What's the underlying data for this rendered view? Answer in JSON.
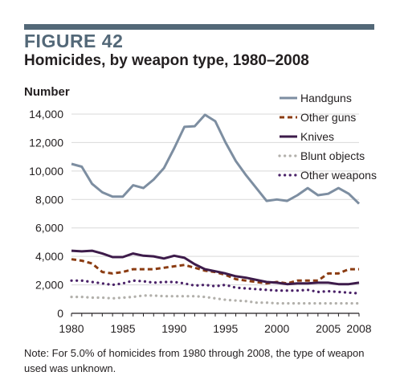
{
  "figure_label": "FIGURE 42",
  "title": "Homicides, by weapon type, 1980–2008",
  "note": "Note: For 5.0% of homicides from 1980 through 2008, the type of weapon used was unknown.",
  "colors": {
    "accent": "#536878",
    "handguns": "#7d8ea1",
    "other_guns": "#8b3c12",
    "knives": "#3d1b4a",
    "blunt_objects": "#b2b0ab",
    "other_weapons": "#4a2268"
  },
  "chart_data": {
    "type": "line",
    "title": "Homicides, by weapon type, 1980–2008",
    "ylabel": "Number",
    "xlabel": "",
    "ylim": [
      0,
      14000
    ],
    "xlim": [
      1980,
      2008
    ],
    "yticks": [
      0,
      2000,
      4000,
      6000,
      8000,
      10000,
      12000,
      14000
    ],
    "ytick_labels": [
      "0",
      "2,000",
      "4,000",
      "6,000",
      "8,000",
      "10,000",
      "12,000",
      "14,000"
    ],
    "xticks": [
      1980,
      1985,
      1990,
      1995,
      2000,
      2005,
      2008
    ],
    "xtick_labels": [
      "1980",
      "1985",
      "1990",
      "1995",
      "2000",
      "2005",
      "2008"
    ],
    "grid": true,
    "legend_position": "top-right",
    "x": [
      1980,
      1981,
      1982,
      1983,
      1984,
      1985,
      1986,
      1987,
      1988,
      1989,
      1990,
      1991,
      1992,
      1993,
      1994,
      1995,
      1996,
      1997,
      1998,
      1999,
      2000,
      2001,
      2002,
      2003,
      2004,
      2005,
      2006,
      2007,
      2008
    ],
    "series": [
      {
        "name": "Handguns",
        "style": "solid",
        "color": "#7d8ea1",
        "values": [
          10500,
          10300,
          9100,
          8500,
          8200,
          8200,
          9000,
          8800,
          9400,
          10200,
          11600,
          13100,
          13150,
          13950,
          13500,
          12000,
          10700,
          9700,
          8800,
          7900,
          8000,
          7900,
          8300,
          8800,
          8300,
          8400,
          8800,
          8400,
          7700
        ]
      },
      {
        "name": "Other guns",
        "style": "dashed",
        "color": "#8b3c12",
        "values": [
          3800,
          3700,
          3500,
          2900,
          2800,
          2900,
          3100,
          3100,
          3100,
          3200,
          3300,
          3400,
          3200,
          3000,
          2900,
          2700,
          2400,
          2300,
          2200,
          2100,
          2200,
          2100,
          2300,
          2300,
          2300,
          2800,
          2800,
          3100,
          3100
        ]
      },
      {
        "name": "Knives",
        "style": "solid",
        "color": "#3d1b4a",
        "values": [
          4400,
          4350,
          4400,
          4200,
          3950,
          3950,
          4200,
          4050,
          4000,
          3850,
          4050,
          3900,
          3450,
          3100,
          2950,
          2800,
          2600,
          2500,
          2350,
          2200,
          2150,
          2050,
          2100,
          2100,
          2150,
          2150,
          2050,
          2050,
          2150
        ]
      },
      {
        "name": "Blunt objects",
        "style": "dotted",
        "color": "#b2b0ab",
        "values": [
          1150,
          1150,
          1100,
          1100,
          1050,
          1100,
          1150,
          1250,
          1250,
          1200,
          1200,
          1200,
          1200,
          1150,
          1050,
          950,
          900,
          850,
          750,
          750,
          700,
          700,
          700,
          700,
          700,
          700,
          700,
          700,
          700
        ]
      },
      {
        "name": "Other weapons",
        "style": "dotted",
        "color": "#4a2268",
        "values": [
          2300,
          2300,
          2200,
          2100,
          2000,
          2100,
          2300,
          2250,
          2150,
          2200,
          2200,
          2100,
          1950,
          2000,
          1900,
          2000,
          1800,
          1750,
          1700,
          1650,
          1600,
          1600,
          1600,
          1650,
          1500,
          1550,
          1500,
          1450,
          1400
        ]
      }
    ]
  }
}
